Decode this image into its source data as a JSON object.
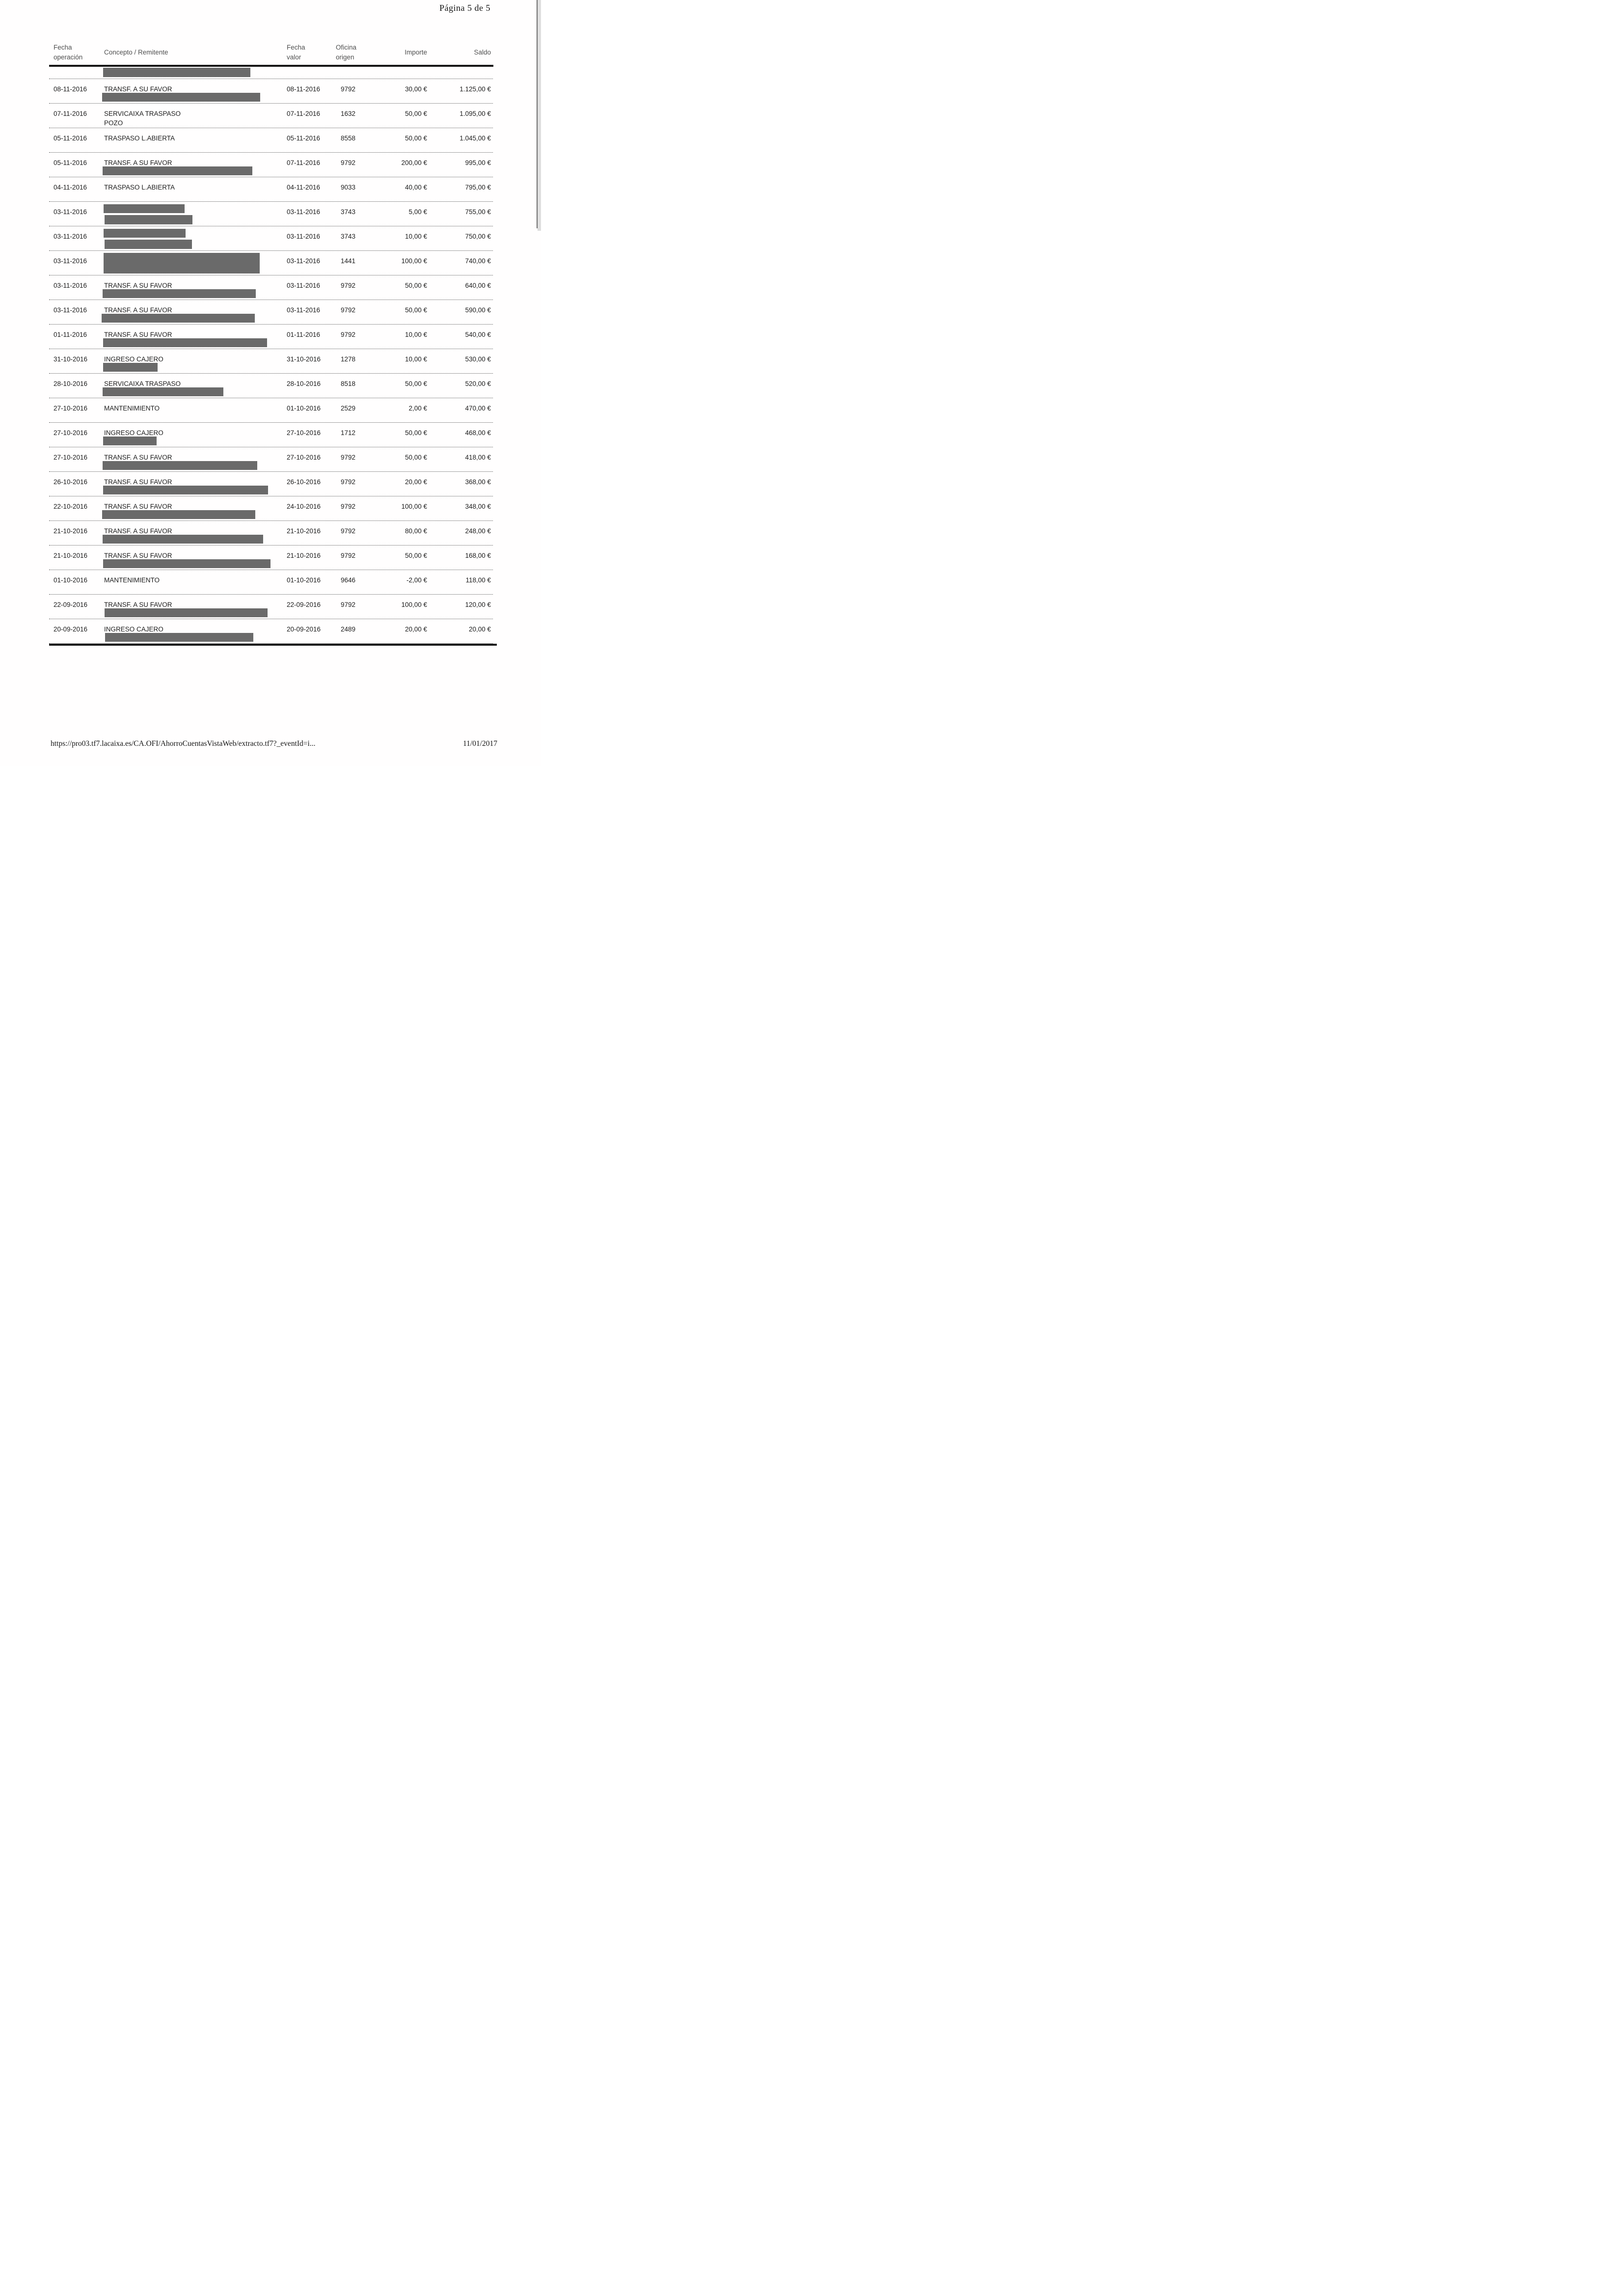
{
  "page": {
    "indicator": "Página 5 de 5"
  },
  "colors": {
    "redaction_bar": "#6a6a6a",
    "text": "#1c1c1c",
    "header_text": "#4f4f4f",
    "rule": "#161616"
  },
  "table": {
    "headers": {
      "fecha_operacion": [
        "Fecha",
        "operación"
      ],
      "concepto": "Concepto / Remitente",
      "fecha_valor": [
        "Fecha",
        "valor"
      ],
      "oficina_origen": [
        "Oficina",
        "origen"
      ],
      "importe": "Importe",
      "saldo": "Saldo"
    },
    "rows": [
      {
        "op": "",
        "concepto": [],
        "valor": "",
        "oficina": "",
        "importe": "",
        "saldo": "",
        "pre": true,
        "bars": [
          [
            110,
            2,
            300,
            19
          ]
        ]
      },
      {
        "op": "08-11-2016",
        "concepto": [
          "TRANSF. A SU FAVOR"
        ],
        "valor": "08-11-2016",
        "oficina": "9792",
        "importe": "30,00 €",
        "saldo": "1.125,00 €",
        "bars": [
          [
            108,
            28,
            322,
            18
          ]
        ]
      },
      {
        "op": "07-11-2016",
        "concepto": [
          "SERVICAIXA TRASPASO",
          "POZO"
        ],
        "valor": "07-11-2016",
        "oficina": "1632",
        "importe": "50,00 €",
        "saldo": "1.095,00 €",
        "bars": []
      },
      {
        "op": "05-11-2016",
        "concepto": [
          "TRASPASO L.ABIERTA"
        ],
        "valor": "05-11-2016",
        "oficina": "8558",
        "importe": "50,00 €",
        "saldo": "1.045,00 €",
        "bars": []
      },
      {
        "op": "05-11-2016",
        "concepto": [
          "TRANSF. A SU FAVOR"
        ],
        "valor": "07-11-2016",
        "oficina": "9792",
        "importe": "200,00 €",
        "saldo": "995,00 €",
        "bars": [
          [
            109,
            28,
            305,
            18
          ]
        ]
      },
      {
        "op": "04-11-2016",
        "concepto": [
          "TRASPASO L.ABIERTA"
        ],
        "valor": "04-11-2016",
        "oficina": "9033",
        "importe": "40,00 €",
        "saldo": "795,00 €",
        "bars": []
      },
      {
        "op": "03-11-2016",
        "concepto": [],
        "valor": "03-11-2016",
        "oficina": "3743",
        "importe": "5,00 €",
        "saldo": "755,00 €",
        "bars": [
          [
            111,
            5,
            165,
            18
          ],
          [
            113,
            27,
            179,
            19
          ]
        ]
      },
      {
        "op": "03-11-2016",
        "concepto": [],
        "valor": "03-11-2016",
        "oficina": "3743",
        "importe": "10,00 €",
        "saldo": "750,00 €",
        "bars": [
          [
            111,
            5,
            167,
            18
          ],
          [
            113,
            27,
            178,
            19
          ]
        ]
      },
      {
        "op": "03-11-2016",
        "concepto": [],
        "valor": "03-11-2016",
        "oficina": "1441",
        "importe": "100,00 €",
        "saldo": "740,00 €",
        "bars": [
          [
            111,
            4,
            318,
            42
          ]
        ]
      },
      {
        "op": "03-11-2016",
        "concepto": [
          "TRANSF. A SU FAVOR"
        ],
        "valor": "03-11-2016",
        "oficina": "9792",
        "importe": "50,00 €",
        "saldo": "640,00 €",
        "bars": [
          [
            109,
            28,
            312,
            18
          ]
        ]
      },
      {
        "op": "03-11-2016",
        "concepto": [
          "TRANSF. A SU FAVOR"
        ],
        "valor": "03-11-2016",
        "oficina": "9792",
        "importe": "50,00 €",
        "saldo": "590,00 €",
        "bars": [
          [
            107,
            28,
            312,
            18
          ]
        ]
      },
      {
        "op": "01-11-2016",
        "concepto": [
          "TRANSF. A SU FAVOR"
        ],
        "valor": "01-11-2016",
        "oficina": "9792",
        "importe": "10,00 €",
        "saldo": "540,00 €",
        "bars": [
          [
            110,
            28,
            334,
            18
          ]
        ]
      },
      {
        "op": "31-10-2016",
        "concepto": [
          "INGRESO CAJERO"
        ],
        "valor": "31-10-2016",
        "oficina": "1278",
        "importe": "10,00 €",
        "saldo": "530,00 €",
        "bars": [
          [
            110,
            28,
            111,
            18
          ]
        ]
      },
      {
        "op": "28-10-2016",
        "concepto": [
          "SERVICAIXA TRASPASO"
        ],
        "valor": "28-10-2016",
        "oficina": "8518",
        "importe": "50,00 €",
        "saldo": "520,00 €",
        "bars": [
          [
            109,
            28,
            246,
            18
          ]
        ]
      },
      {
        "op": "27-10-2016",
        "concepto": [
          "MANTENIMIENTO"
        ],
        "valor": "01-10-2016",
        "oficina": "2529",
        "importe": "2,00 €",
        "saldo": "470,00 €",
        "bars": []
      },
      {
        "op": "27-10-2016",
        "concepto": [
          "INGRESO CAJERO"
        ],
        "valor": "27-10-2016",
        "oficina": "1712",
        "importe": "50,00 €",
        "saldo": "468,00 €",
        "bars": [
          [
            110,
            28,
            109,
            18
          ]
        ]
      },
      {
        "op": "27-10-2016",
        "concepto": [
          "TRANSF. A SU FAVOR"
        ],
        "valor": "27-10-2016",
        "oficina": "9792",
        "importe": "50,00 €",
        "saldo": "418,00 €",
        "bars": [
          [
            109,
            28,
            315,
            18
          ]
        ]
      },
      {
        "op": "26-10-2016",
        "concepto": [
          "TRANSF. A SU FAVOR"
        ],
        "valor": "26-10-2016",
        "oficina": "9792",
        "importe": "20,00 €",
        "saldo": "368,00 €",
        "bars": [
          [
            110,
            28,
            336,
            18
          ]
        ]
      },
      {
        "op": "22-10-2016",
        "concepto": [
          "TRANSF. A SU FAVOR"
        ],
        "valor": "24-10-2016",
        "oficina": "9792",
        "importe": "100,00 €",
        "saldo": "348,00 €",
        "bars": [
          [
            108,
            28,
            312,
            18
          ]
        ]
      },
      {
        "op": "21-10-2016",
        "concepto": [
          "TRANSF. A SU FAVOR"
        ],
        "valor": "21-10-2016",
        "oficina": "9792",
        "importe": "80,00 €",
        "saldo": "248,00 €",
        "bars": [
          [
            109,
            28,
            327,
            18
          ]
        ]
      },
      {
        "op": "21-10-2016",
        "concepto": [
          "TRANSF. A SU FAVOR"
        ],
        "valor": "21-10-2016",
        "oficina": "9792",
        "importe": "50,00 €",
        "saldo": "168,00 €",
        "bars": [
          [
            110,
            28,
            341,
            18
          ]
        ]
      },
      {
        "op": "01-10-2016",
        "concepto": [
          "MANTENIMIENTO"
        ],
        "valor": "01-10-2016",
        "oficina": "9646",
        "importe": "-2,00 €",
        "saldo": "118,00 €",
        "bars": []
      },
      {
        "op": "22-09-2016",
        "concepto": [
          "TRANSF. A SU FAVOR"
        ],
        "valor": "22-09-2016",
        "oficina": "9792",
        "importe": "100,00 €",
        "saldo": "120,00 €",
        "bars": [
          [
            113,
            28,
            332,
            18
          ]
        ]
      },
      {
        "op": "20-09-2016",
        "concepto": [
          "INGRESO CAJERO"
        ],
        "valor": "20-09-2016",
        "oficina": "2489",
        "importe": "20,00 €",
        "saldo": "20,00 €",
        "bars": [
          [
            114,
            28,
            302,
            18
          ]
        ]
      }
    ]
  },
  "footer": {
    "url": "https://pro03.tf7.lacaixa.es/CA.OFI/AhorroCuentasVistaWeb/extracto.tf7?_eventId=i...",
    "date": "11/01/2017"
  }
}
